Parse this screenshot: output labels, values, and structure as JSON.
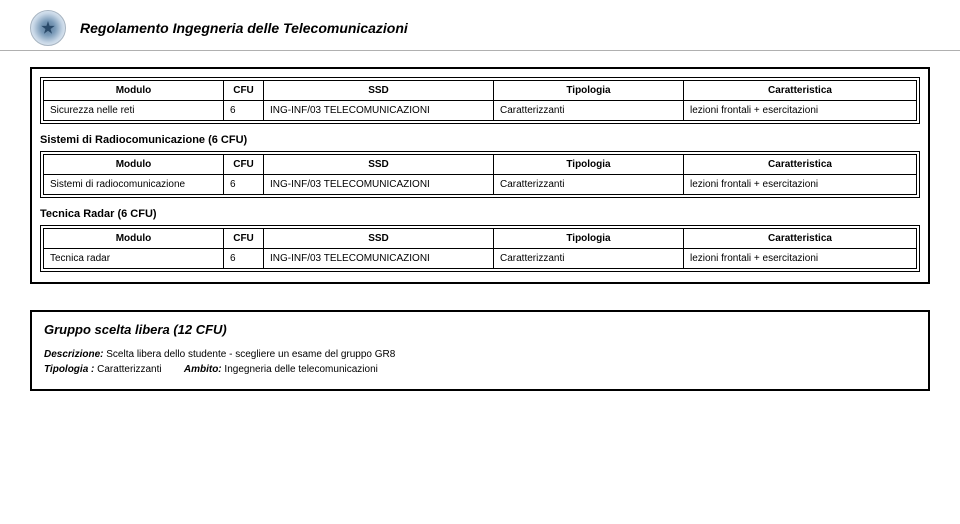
{
  "header": {
    "title": "Regolamento Ingegneria delle Telecomunicazioni"
  },
  "columns": {
    "modulo": "Modulo",
    "cfu": "CFU",
    "ssd": "SSD",
    "tipologia": "Tipologia",
    "caratteristica": "Caratteristica"
  },
  "tables": [
    {
      "beforeTitle": null,
      "row": {
        "modulo": "Sicurezza nelle reti",
        "cfu": "6",
        "ssd": "ING-INF/03 TELECOMUNICAZIONI",
        "tipologia": "Caratterizzanti",
        "caratteristica": "lezioni frontali + esercitazioni"
      }
    },
    {
      "beforeTitle": "Sistemi di Radiocomunicazione (6 CFU)",
      "row": {
        "modulo": "Sistemi di radiocomunicazione",
        "cfu": "6",
        "ssd": "ING-INF/03 TELECOMUNICAZIONI",
        "tipologia": "Caratterizzanti",
        "caratteristica": "lezioni frontali + esercitazioni"
      }
    },
    {
      "beforeTitle": "Tecnica Radar (6 CFU)",
      "row": {
        "modulo": "Tecnica radar",
        "cfu": "6",
        "ssd": "ING-INF/03 TELECOMUNICAZIONI",
        "tipologia": "Caratterizzanti",
        "caratteristica": "lezioni frontali + esercitazioni"
      }
    }
  ],
  "group": {
    "title": "Gruppo scelta libera (12 CFU)",
    "descLabel": "Descrizione:",
    "descText": " Scelta libera dello studente - scegliere un esame del gruppo GR8",
    "tipLabel": "Tipologia :",
    "tipText": " Caratterizzanti",
    "ambLabel": "Ambito:",
    "ambText": " Ingegneria delle telecomunicazioni"
  },
  "style": {
    "background": "#ffffff",
    "text": "#000000",
    "border": "#000000",
    "headerRule": "#b0b0b0",
    "bodyFontSize": 10,
    "titleFontSize": 14,
    "sectionTitleFontSize": 11,
    "groupTitleFontSize": 13
  }
}
